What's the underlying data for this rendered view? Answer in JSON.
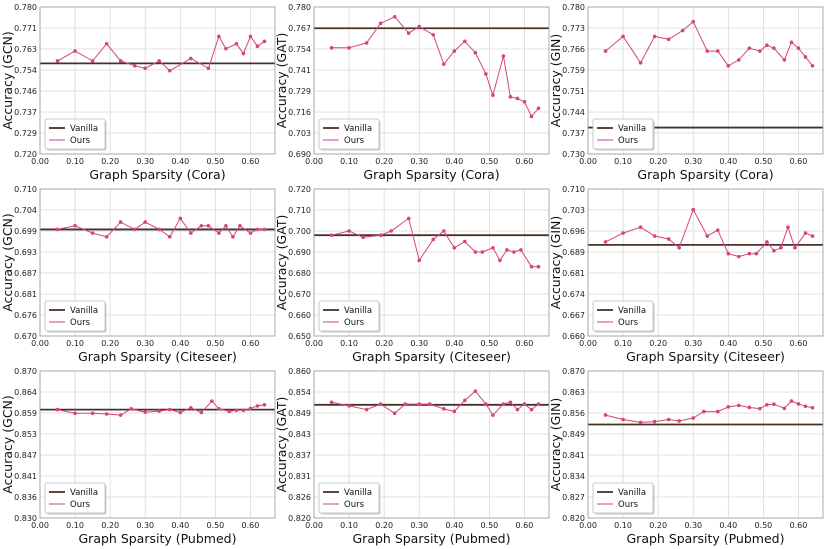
{
  "colors": {
    "vanilla": "#4a3222",
    "ours": "#d6457a",
    "grid": "#d9d9d9"
  },
  "legend": {
    "vanilla": "Vanilla",
    "ours": "Ours"
  },
  "chart_data": [
    {
      "type": "line",
      "xlabel": "Graph Sparsity (Cora)",
      "ylabel": "Accuracy (GCN)",
      "xlim": [
        0,
        0.67
      ],
      "ylim": [
        0.72,
        0.78
      ],
      "xticks": [
        "0.00",
        "0.10",
        "0.20",
        "0.30",
        "0.40",
        "0.50",
        "0.60"
      ],
      "yticks": [
        "0.720",
        "0.729",
        "0.737",
        "0.746",
        "0.754",
        "0.763",
        "0.771",
        "0.780"
      ],
      "vanilla": 0.757,
      "legend_loc": "lower-left",
      "x": [
        0.05,
        0.1,
        0.15,
        0.19,
        0.23,
        0.27,
        0.3,
        0.34,
        0.37,
        0.43,
        0.48,
        0.51,
        0.53,
        0.56,
        0.58,
        0.6,
        0.62,
        0.64
      ],
      "values": [
        0.758,
        0.762,
        0.758,
        0.765,
        0.758,
        0.756,
        0.755,
        0.758,
        0.754,
        0.759,
        0.755,
        0.768,
        0.763,
        0.765,
        0.761,
        0.768,
        0.764,
        0.766
      ]
    },
    {
      "type": "line",
      "xlabel": "Graph Sparsity (Cora)",
      "ylabel": "Accuracy (GAT)",
      "xlim": [
        0,
        0.67
      ],
      "ylim": [
        0.69,
        0.78
      ],
      "xticks": [
        "0.00",
        "0.10",
        "0.20",
        "0.30",
        "0.40",
        "0.50",
        "0.60"
      ],
      "yticks": [
        "0.690",
        "0.703",
        "0.716",
        "0.729",
        "0.741",
        "0.754",
        "0.767",
        "0.780"
      ],
      "vanilla": 0.767,
      "legend_loc": "lower-left",
      "x": [
        0.05,
        0.1,
        0.15,
        0.19,
        0.23,
        0.27,
        0.3,
        0.34,
        0.37,
        0.4,
        0.43,
        0.46,
        0.49,
        0.51,
        0.54,
        0.56,
        0.58,
        0.6,
        0.62,
        0.64
      ],
      "values": [
        0.755,
        0.755,
        0.758,
        0.77,
        0.774,
        0.764,
        0.768,
        0.763,
        0.745,
        0.753,
        0.759,
        0.752,
        0.739,
        0.726,
        0.75,
        0.725,
        0.724,
        0.722,
        0.713,
        0.718
      ]
    },
    {
      "type": "line",
      "xlabel": "Graph Sparsity (Cora)",
      "ylabel": "Accuracy (GIN)",
      "xlim": [
        0,
        0.67
      ],
      "ylim": [
        0.73,
        0.78
      ],
      "xticks": [
        "0.00",
        "0.10",
        "0.20",
        "0.30",
        "0.40",
        "0.50",
        "0.60"
      ],
      "yticks": [
        "0.730",
        "0.737",
        "0.744",
        "0.751",
        "0.759",
        "0.766",
        "0.773",
        "0.780"
      ],
      "vanilla": 0.739,
      "legend_loc": "lower-left",
      "x": [
        0.05,
        0.1,
        0.15,
        0.19,
        0.23,
        0.27,
        0.3,
        0.34,
        0.37,
        0.4,
        0.43,
        0.46,
        0.49,
        0.51,
        0.53,
        0.56,
        0.58,
        0.6,
        0.62,
        0.64
      ],
      "values": [
        0.765,
        0.77,
        0.761,
        0.77,
        0.769,
        0.772,
        0.775,
        0.765,
        0.765,
        0.76,
        0.762,
        0.766,
        0.765,
        0.767,
        0.766,
        0.762,
        0.768,
        0.766,
        0.763,
        0.76
      ]
    },
    {
      "type": "line",
      "xlabel": "Graph Sparsity (Citeseer)",
      "ylabel": "Accuracy (GCN)",
      "xlim": [
        0,
        0.67
      ],
      "ylim": [
        0.67,
        0.71
      ],
      "xticks": [
        "0.00",
        "0.10",
        "0.20",
        "0.30",
        "0.40",
        "0.50",
        "0.60"
      ],
      "yticks": [
        "0.670",
        "0.676",
        "0.681",
        "0.687",
        "0.693",
        "0.699",
        "0.704",
        "0.710"
      ],
      "vanilla": 0.699,
      "legend_loc": "lower-left",
      "x": [
        0.05,
        0.1,
        0.15,
        0.19,
        0.23,
        0.27,
        0.3,
        0.34,
        0.37,
        0.4,
        0.43,
        0.46,
        0.48,
        0.51,
        0.53,
        0.55,
        0.57,
        0.6,
        0.62,
        0.64
      ],
      "values": [
        0.699,
        0.7,
        0.698,
        0.697,
        0.701,
        0.699,
        0.701,
        0.699,
        0.697,
        0.702,
        0.698,
        0.7,
        0.7,
        0.698,
        0.7,
        0.697,
        0.7,
        0.698,
        0.699,
        0.699
      ]
    },
    {
      "type": "line",
      "xlabel": "Graph Sparsity (Citeseer)",
      "ylabel": "Accuracy (GAT)",
      "xlim": [
        0,
        0.67
      ],
      "ylim": [
        0.65,
        0.72
      ],
      "xticks": [
        "0.00",
        "0.10",
        "0.20",
        "0.30",
        "0.40",
        "0.50",
        "0.60"
      ],
      "yticks": [
        "0.650",
        "0.660",
        "0.670",
        "0.680",
        "0.690",
        "0.700",
        "0.710",
        "0.720"
      ],
      "vanilla": 0.698,
      "legend_loc": "lower-left",
      "x": [
        0.05,
        0.1,
        0.14,
        0.19,
        0.22,
        0.27,
        0.3,
        0.34,
        0.37,
        0.4,
        0.43,
        0.46,
        0.48,
        0.51,
        0.53,
        0.55,
        0.57,
        0.59,
        0.62,
        0.64
      ],
      "values": [
        0.698,
        0.7,
        0.697,
        0.698,
        0.7,
        0.706,
        0.686,
        0.696,
        0.7,
        0.692,
        0.695,
        0.69,
        0.69,
        0.692,
        0.686,
        0.691,
        0.69,
        0.691,
        0.683,
        0.683
      ]
    },
    {
      "type": "line",
      "xlabel": "Graph Sparsity (Citeseer)",
      "ylabel": "Accuracy (GIN)",
      "xlim": [
        0,
        0.67
      ],
      "ylim": [
        0.66,
        0.71
      ],
      "xticks": [
        "0.00",
        "0.10",
        "0.20",
        "0.30",
        "0.40",
        "0.50",
        "0.60"
      ],
      "yticks": [
        "0.660",
        "0.667",
        "0.674",
        "0.681",
        "0.689",
        "0.696",
        "0.703",
        "0.710"
      ],
      "vanilla": 0.691,
      "legend_loc": "lower-left",
      "x": [
        0.05,
        0.1,
        0.15,
        0.19,
        0.23,
        0.26,
        0.3,
        0.34,
        0.37,
        0.4,
        0.43,
        0.46,
        0.48,
        0.51,
        0.53,
        0.55,
        0.57,
        0.59,
        0.62,
        0.64
      ],
      "values": [
        0.692,
        0.695,
        0.697,
        0.694,
        0.693,
        0.69,
        0.703,
        0.694,
        0.696,
        0.688,
        0.687,
        0.688,
        0.688,
        0.692,
        0.689,
        0.69,
        0.697,
        0.69,
        0.695,
        0.694
      ]
    },
    {
      "type": "line",
      "xlabel": "Graph Sparsity (Pubmed)",
      "ylabel": "Accuracy (GCN)",
      "xlim": [
        0,
        0.67
      ],
      "ylim": [
        0.83,
        0.87
      ],
      "xticks": [
        "0.00",
        "0.10",
        "0.20",
        "0.30",
        "0.40",
        "0.50",
        "0.60"
      ],
      "yticks": [
        "0.830",
        "0.836",
        "0.841",
        "0.847",
        "0.853",
        "0.859",
        "0.864",
        "0.870"
      ],
      "vanilla": 0.8595,
      "legend_loc": "lower-left",
      "x": [
        0.05,
        0.1,
        0.15,
        0.19,
        0.23,
        0.26,
        0.3,
        0.34,
        0.37,
        0.4,
        0.43,
        0.46,
        0.49,
        0.51,
        0.54,
        0.56,
        0.58,
        0.6,
        0.62,
        0.64
      ],
      "values": [
        0.8595,
        0.8585,
        0.8585,
        0.8583,
        0.858,
        0.8597,
        0.8588,
        0.8591,
        0.8595,
        0.8587,
        0.86,
        0.8587,
        0.8618,
        0.8597,
        0.859,
        0.8593,
        0.8593,
        0.8598,
        0.8605,
        0.8608
      ]
    },
    {
      "type": "line",
      "xlabel": "Graph Sparsity (Pubmed)",
      "ylabel": "Accuracy (GAT)",
      "xlim": [
        0,
        0.67
      ],
      "ylim": [
        0.82,
        0.86
      ],
      "xticks": [
        "0.00",
        "0.10",
        "0.20",
        "0.30",
        "0.40",
        "0.50",
        "0.60"
      ],
      "yticks": [
        "0.820",
        "0.826",
        "0.831",
        "0.837",
        "0.843",
        "0.849",
        "0.854",
        "0.860"
      ],
      "vanilla": 0.8508,
      "legend_loc": "lower-left",
      "x": [
        0.05,
        0.1,
        0.15,
        0.19,
        0.23,
        0.26,
        0.3,
        0.33,
        0.37,
        0.4,
        0.43,
        0.46,
        0.49,
        0.51,
        0.54,
        0.56,
        0.58,
        0.6,
        0.62,
        0.64
      ],
      "values": [
        0.8515,
        0.8505,
        0.8495,
        0.851,
        0.8485,
        0.851,
        0.851,
        0.851,
        0.8497,
        0.849,
        0.852,
        0.8545,
        0.851,
        0.848,
        0.851,
        0.8515,
        0.8495,
        0.851,
        0.8495,
        0.851
      ]
    },
    {
      "type": "line",
      "xlabel": "Graph Sparsity (Pubmed)",
      "ylabel": "Accuracy (GIN)",
      "xlim": [
        0,
        0.67
      ],
      "ylim": [
        0.82,
        0.87
      ],
      "xticks": [
        "0.00",
        "0.10",
        "0.20",
        "0.30",
        "0.40",
        "0.50",
        "0.60"
      ],
      "yticks": [
        "0.820",
        "0.827",
        "0.834",
        "0.841",
        "0.849",
        "0.856",
        "0.863",
        "0.870"
      ],
      "vanilla": 0.8518,
      "legend_loc": "lower-left",
      "x": [
        0.05,
        0.1,
        0.15,
        0.19,
        0.23,
        0.26,
        0.3,
        0.33,
        0.37,
        0.4,
        0.43,
        0.46,
        0.49,
        0.51,
        0.53,
        0.56,
        0.58,
        0.6,
        0.62,
        0.64
      ],
      "values": [
        0.855,
        0.8535,
        0.8525,
        0.8528,
        0.8535,
        0.853,
        0.854,
        0.8562,
        0.8562,
        0.8578,
        0.8583,
        0.8576,
        0.8572,
        0.8585,
        0.8587,
        0.8573,
        0.8598,
        0.8588,
        0.858,
        0.8575
      ]
    }
  ]
}
